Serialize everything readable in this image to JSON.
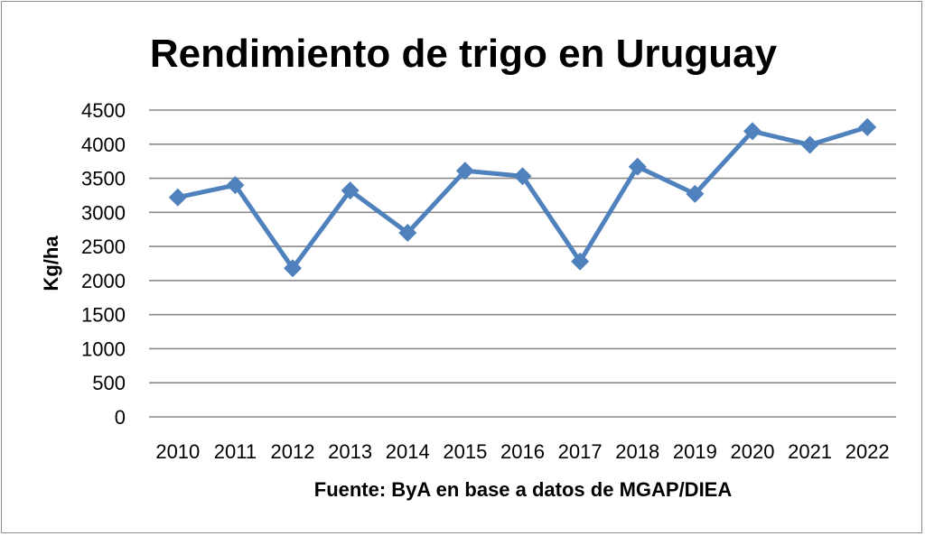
{
  "chart_data": {
    "type": "line",
    "title": "Rendimiento de trigo en Uruguay",
    "ylabel": "Kg/ha",
    "xlabel": "Fuente: ByA en base a datos de MGAP/DIEA",
    "ylim": [
      0,
      4500
    ],
    "yticks": [
      "0",
      "500",
      "1000",
      "1500",
      "2000",
      "2500",
      "3000",
      "3500",
      "4000",
      "4500"
    ],
    "categories": [
      "2010",
      "2011",
      "2012",
      "2013",
      "2014",
      "2015",
      "2016",
      "2017",
      "2018",
      "2019",
      "2020",
      "2021",
      "2022"
    ],
    "series": [
      {
        "values": [
          3220,
          3400,
          2180,
          3320,
          2700,
          3610,
          3530,
          2280,
          3670,
          3270,
          4190,
          3990,
          4250
        ]
      }
    ],
    "grid": true,
    "legend": "none"
  },
  "colors": {
    "series": "#4f81bd",
    "grid": "#8a8a8a"
  }
}
